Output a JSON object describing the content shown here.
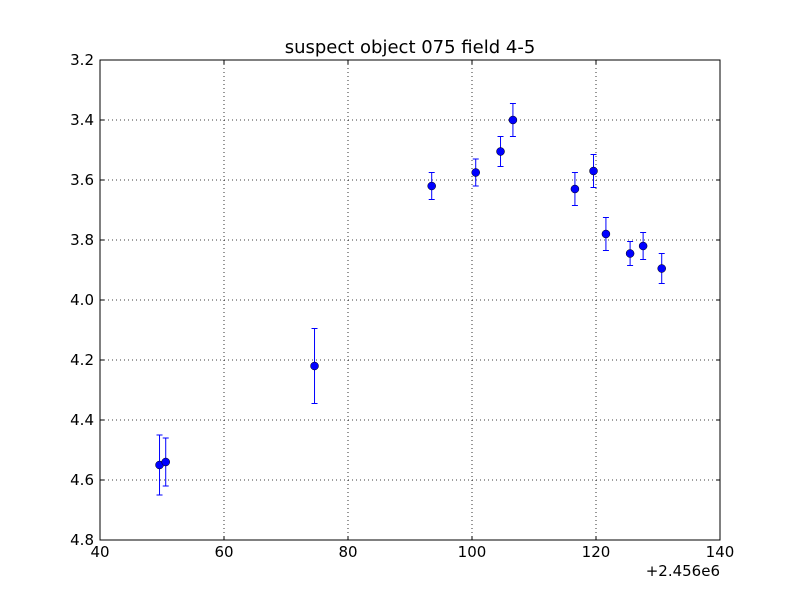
{
  "chart_data": {
    "type": "scatter",
    "title": "suspect object 075 field 4-5",
    "xlabel": "",
    "ylabel": "",
    "x_offset_label": "+2.456e6",
    "xlim": [
      40,
      140
    ],
    "ylim": [
      3.2,
      4.8
    ],
    "y_inverted": true,
    "x_ticks": [
      40,
      60,
      80,
      100,
      120,
      140
    ],
    "x_tick_labels": [
      "40",
      "60",
      "80",
      "100",
      "120",
      "140"
    ],
    "y_ticks": [
      3.2,
      3.4,
      3.6,
      3.8,
      4.0,
      4.2,
      4.4,
      4.6,
      4.8
    ],
    "y_tick_labels": [
      "3.2",
      "3.4",
      "3.6",
      "3.8",
      "4.0",
      "4.2",
      "4.4",
      "4.6",
      "4.8"
    ],
    "grid": true,
    "error_bars": true,
    "marker_color": "#0000ff",
    "series": [
      {
        "points": [
          {
            "x": 49.6,
            "y": 4.55,
            "err": 0.1
          },
          {
            "x": 50.6,
            "y": 4.54,
            "err": 0.08
          },
          {
            "x": 74.6,
            "y": 4.22,
            "err": 0.125
          },
          {
            "x": 93.5,
            "y": 3.62,
            "err": 0.045
          },
          {
            "x": 100.6,
            "y": 3.575,
            "err": 0.045
          },
          {
            "x": 104.6,
            "y": 3.505,
            "err": 0.05
          },
          {
            "x": 106.6,
            "y": 3.4,
            "err": 0.055
          },
          {
            "x": 116.6,
            "y": 3.63,
            "err": 0.055
          },
          {
            "x": 119.6,
            "y": 3.57,
            "err": 0.055
          },
          {
            "x": 121.6,
            "y": 3.78,
            "err": 0.055
          },
          {
            "x": 125.5,
            "y": 3.845,
            "err": 0.04
          },
          {
            "x": 127.6,
            "y": 3.82,
            "err": 0.045
          },
          {
            "x": 130.6,
            "y": 3.895,
            "err": 0.05
          }
        ]
      }
    ]
  }
}
